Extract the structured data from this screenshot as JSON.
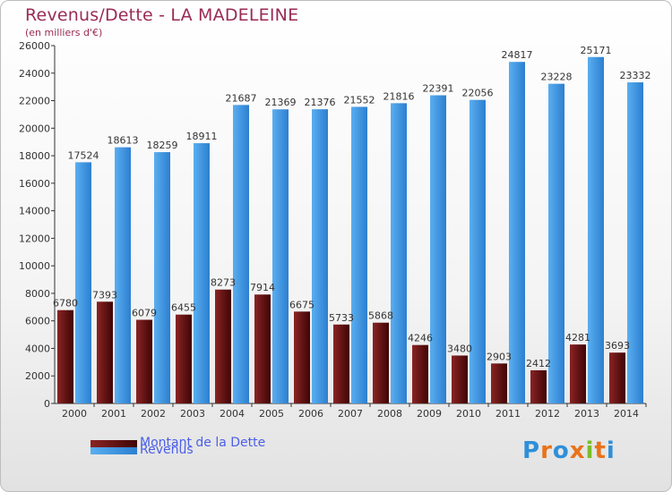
{
  "title": "Revenus/Dette - LA MADELEINE",
  "subtitle": "(en milliers d'€)",
  "colors": {
    "dette_light": "#8a2424",
    "dette_dark": "#3f0505",
    "revenus_light": "#5aaef0",
    "revenus_dark": "#2c7fd0",
    "title": "#9a2b55",
    "legend_text": "#4a5ee8"
  },
  "logo": {
    "text": "Proxiti",
    "letter_colors": [
      "#2f8fd8",
      "#e8731a",
      "#2f8fd8",
      "#e8731a",
      "#7bbd2a",
      "#e8731a",
      "#2f8fd8"
    ]
  },
  "chart_data": {
    "type": "bar",
    "title": "Revenus/Dette - LA MADELEINE",
    "subtitle": "(en milliers d'€)",
    "categories": [
      "2000",
      "2001",
      "2002",
      "2003",
      "2004",
      "2005",
      "2006",
      "2007",
      "2008",
      "2009",
      "2010",
      "2011",
      "2012",
      "2013",
      "2014"
    ],
    "series": [
      {
        "name": "Montant de la Dette",
        "values": [
          6780,
          7393,
          6079,
          6455,
          8273,
          7914,
          6675,
          5733,
          5868,
          4246,
          3480,
          2903,
          2412,
          4281,
          3693
        ],
        "labels": [
          "6780",
          "7393",
          "6079",
          "6455",
          "8273",
          "7914",
          "6675",
          "5733",
          "5868",
          "4246",
          "3480",
          "2903",
          "2412",
          "4281",
          "3693"
        ]
      },
      {
        "name": "Revenus",
        "values": [
          17524,
          18613,
          18259,
          18911,
          21687,
          21369,
          21376,
          21552,
          21816,
          22391,
          22056,
          24817,
          23228,
          25171,
          23332
        ],
        "labels": [
          "17524",
          "18613",
          "18259",
          "18911",
          "21687",
          "21369",
          "21376",
          "21552",
          "21816",
          "22391",
          "22056",
          "24817",
          "23228",
          "25171",
          "23332"
        ]
      }
    ],
    "ylim": [
      0,
      26000
    ],
    "yticks": [
      "0",
      "2000",
      "4000",
      "6000",
      "8000",
      "10000",
      "12000",
      "14000",
      "16000",
      "18000",
      "20000",
      "22000",
      "24000",
      "26000"
    ],
    "grid": false,
    "legend": "bottom-left"
  }
}
